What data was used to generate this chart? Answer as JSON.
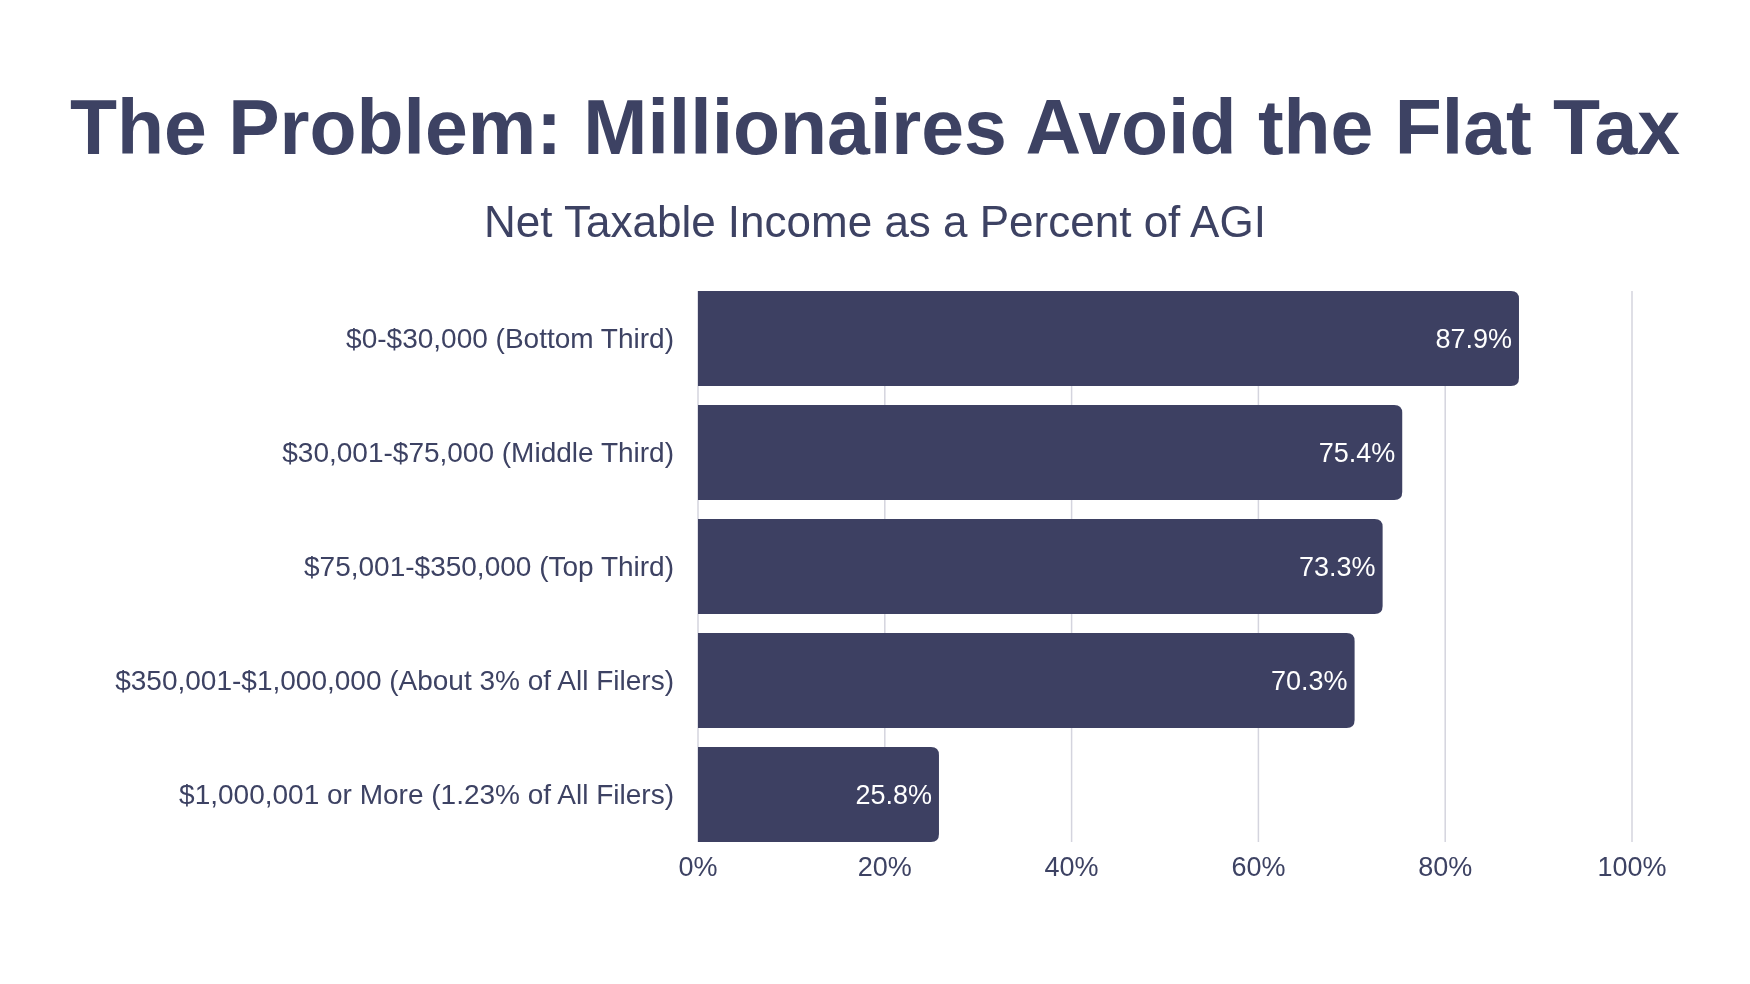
{
  "chart_data": {
    "type": "bar",
    "orientation": "horizontal",
    "title": "The Problem: Millionaires Avoid the Flat Tax",
    "subtitle": "Net Taxable Income as a Percent of AGI",
    "categories": [
      "$0-$30,000 (Bottom Third)",
      "$30,001-$75,000 (Middle Third)",
      "$75,001-$350,000 (Top Third)",
      "$350,001-$1,000,000 (About 3% of All Filers)",
      "$1,000,001 or More (1.23% of All Filers)"
    ],
    "values": [
      87.9,
      75.4,
      73.3,
      70.3,
      25.8
    ],
    "value_labels": [
      "87.9%",
      "75.4%",
      "73.3%",
      "70.3%",
      "25.8%"
    ],
    "color": "#3d4062",
    "xlim": [
      0,
      100
    ],
    "xticks": [
      {
        "value": 0,
        "label": "0%"
      },
      {
        "value": 20,
        "label": "20%"
      },
      {
        "value": 40,
        "label": "40%"
      },
      {
        "value": 60,
        "label": "60%"
      },
      {
        "value": 80,
        "label": "80%"
      },
      {
        "value": 100,
        "label": "100%"
      }
    ],
    "grid": "x"
  }
}
